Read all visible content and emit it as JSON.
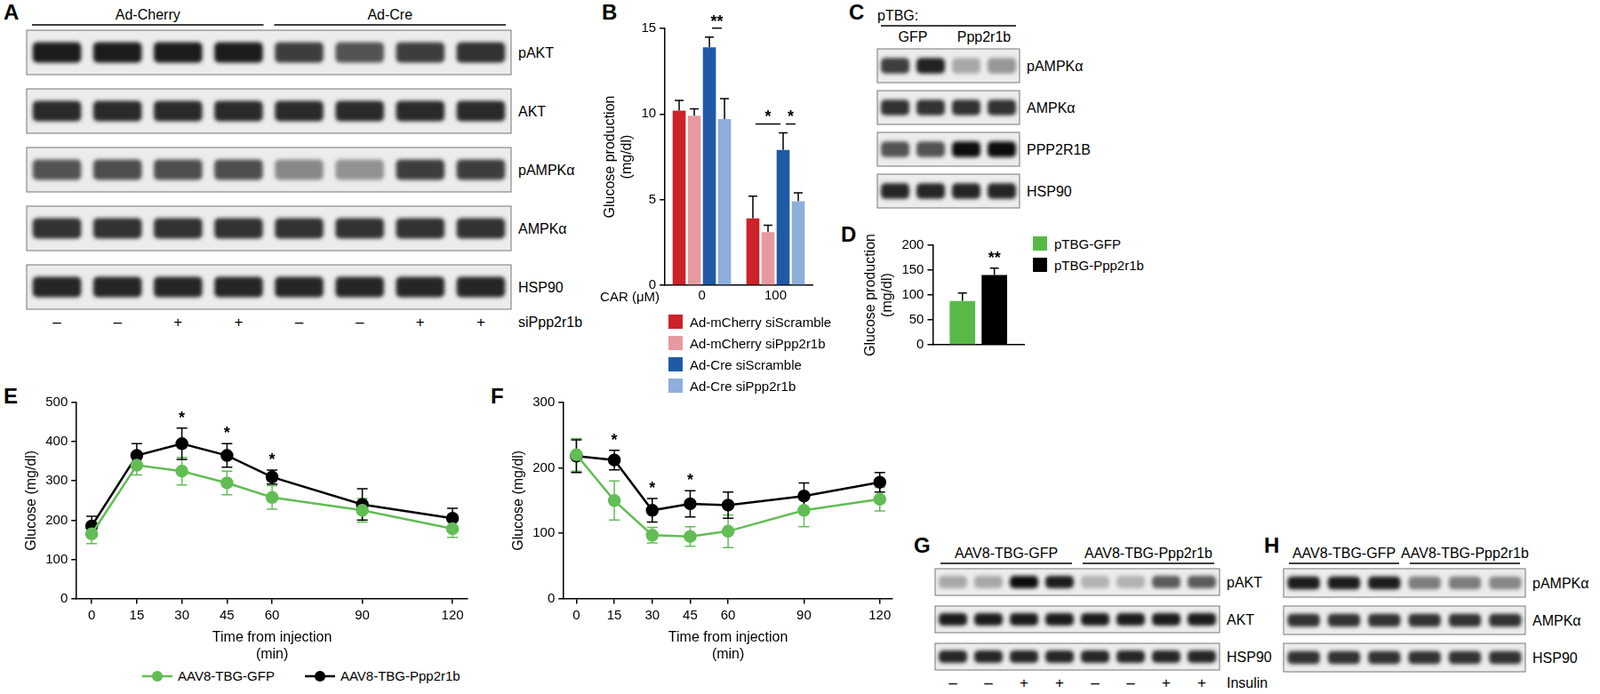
{
  "chart_data": [
    {
      "type": "blot",
      "panel": "A",
      "lane_groups": [
        "Ad-Cherry",
        "Ad-Cherry",
        "Ad-Cherry",
        "Ad-Cherry",
        "Ad-Cre",
        "Ad-Cre",
        "Ad-Cre",
        "Ad-Cre"
      ],
      "rows": [
        {
          "label": "pAKT",
          "intensity": [
            0.95,
            0.95,
            0.95,
            0.95,
            0.8,
            0.7,
            0.8,
            0.85
          ]
        },
        {
          "label": "AKT",
          "intensity": [
            0.88,
            0.88,
            0.88,
            0.88,
            0.88,
            0.88,
            0.88,
            0.88
          ]
        },
        {
          "label": "pAMPKα",
          "intensity": [
            0.7,
            0.72,
            0.72,
            0.72,
            0.45,
            0.4,
            0.8,
            0.8
          ]
        },
        {
          "label": "AMPKα",
          "intensity": [
            0.85,
            0.85,
            0.85,
            0.85,
            0.85,
            0.85,
            0.85,
            0.85
          ]
        },
        {
          "label": "HSP90",
          "intensity": [
            0.9,
            0.9,
            0.9,
            0.9,
            0.9,
            0.9,
            0.9,
            0.9
          ]
        }
      ],
      "lane_labels": [
        "–",
        "–",
        "+",
        "+",
        "–",
        "–",
        "+",
        "+"
      ],
      "lane_label_title": "siPpp2r1b"
    },
    {
      "type": "bar",
      "panel": "B",
      "categories": [
        "0",
        "100"
      ],
      "x_label": "AICAR (μM)",
      "y_label": "Glucose production (mg/dl)",
      "ylim": [
        0,
        15
      ],
      "yticks": [
        0,
        5,
        10,
        15
      ],
      "grid": false,
      "legend": "bottom",
      "series": [
        {
          "name": "Ad-mCherry siScramble",
          "color": "#cc2229",
          "values": [
            10.2,
            3.9
          ],
          "errors": [
            0.6,
            1.3
          ]
        },
        {
          "name": "Ad-mCherry siPpp2r1b",
          "color": "#e69a9f",
          "values": [
            9.9,
            3.1
          ],
          "errors": [
            0.4,
            0.4
          ]
        },
        {
          "name": "Ad-Cre siScramble",
          "color": "#1f5aa6",
          "values": [
            13.9,
            7.9
          ],
          "errors": [
            0.6,
            1.0
          ]
        },
        {
          "name": "Ad-Cre siPpp2r1b",
          "color": "#8eaedb",
          "values": [
            9.7,
            4.9
          ],
          "errors": [
            1.2,
            0.5
          ]
        }
      ],
      "significance": [
        {
          "text": "**",
          "category": 0,
          "from": 2,
          "to": 3
        },
        {
          "text": "*",
          "category": 1,
          "from": 0,
          "to": 2
        },
        {
          "text": "*",
          "category": 1,
          "from": 2,
          "to": 3
        }
      ]
    },
    {
      "type": "blot",
      "panel": "C",
      "header": "pTBG:",
      "lane_groups": [
        "GFP",
        "GFP",
        "Ppp2r1b",
        "Ppp2r1b"
      ],
      "rows": [
        {
          "label": "pAMPKα",
          "intensity": [
            0.8,
            0.92,
            0.3,
            0.38
          ]
        },
        {
          "label": "AMPKα",
          "intensity": [
            0.85,
            0.85,
            0.85,
            0.85
          ]
        },
        {
          "label": "PPP2R1B",
          "intensity": [
            0.7,
            0.7,
            1.0,
            1.0
          ]
        },
        {
          "label": "HSP90",
          "intensity": [
            0.9,
            0.9,
            0.9,
            0.9
          ]
        }
      ]
    },
    {
      "type": "bar",
      "panel": "D",
      "categories": [
        null
      ],
      "y_label": "Glucose production (mg/dl)",
      "ylim": [
        0,
        200
      ],
      "yticks": [
        0,
        50,
        100,
        150,
        200
      ],
      "grid": false,
      "legend": "top right",
      "series": [
        {
          "name": "pTBG-GFP",
          "color": "#58b947",
          "values": [
            88
          ],
          "errors": [
            16
          ]
        },
        {
          "name": "pTBG-Ppp2r1b",
          "color": "#000000",
          "values": [
            140
          ],
          "errors": [
            14
          ]
        }
      ],
      "significance": [
        {
          "text": "**",
          "category": 0,
          "series": 1
        }
      ]
    },
    {
      "type": "line",
      "panel": "E",
      "x": [
        0,
        15,
        30,
        45,
        60,
        90,
        120
      ],
      "xlim": [
        -5,
        125
      ],
      "xticks": [
        0,
        15,
        30,
        45,
        60,
        90,
        120
      ],
      "ylim": [
        0,
        500
      ],
      "yticks": [
        0,
        100,
        200,
        300,
        400,
        500
      ],
      "x_label": "Time from injection (min)",
      "y_label": "Glucose (mg/dl)",
      "grid": false,
      "legend": "bottom",
      "series": [
        {
          "name": "AAV8-TBG-GFP",
          "color": "#62bd55",
          "marker": "circle",
          "values": [
            165,
            340,
            325,
            295,
            258,
            225,
            178
          ],
          "errors": [
            25,
            25,
            35,
            30,
            30,
            30,
            22
          ]
        },
        {
          "name": "AAV8-TBG-Ppp2r1b",
          "color": "#000000",
          "marker": "circle",
          "values": [
            185,
            365,
            395,
            365,
            310,
            240,
            205
          ],
          "errors": [
            25,
            30,
            40,
            30,
            18,
            40,
            25
          ]
        }
      ],
      "significance": [
        {
          "text": "*",
          "x": 30
        },
        {
          "text": "*",
          "x": 45
        },
        {
          "text": "*",
          "x": 60
        }
      ]
    },
    {
      "type": "line",
      "panel": "F",
      "x": [
        0,
        15,
        30,
        45,
        60,
        90,
        120
      ],
      "xlim": [
        -5,
        125
      ],
      "xticks": [
        0,
        15,
        30,
        45,
        60,
        90,
        120
      ],
      "ylim": [
        0,
        300
      ],
      "yticks": [
        0,
        100,
        200,
        300
      ],
      "x_label": "Time from injection (min)",
      "y_label": "Glucose (mg/dl)",
      "grid": false,
      "legend": "bottom",
      "series": [
        {
          "name": "AAV8-TBG-GFP",
          "color": "#62bd55",
          "marker": "circle",
          "values": [
            220,
            150,
            97,
            95,
            103,
            135,
            152
          ],
          "errors": [
            25,
            30,
            12,
            15,
            25,
            25,
            18
          ]
        },
        {
          "name": "AAV8-TBG-Ppp2r1b",
          "color": "#000000",
          "marker": "circle",
          "values": [
            218,
            212,
            135,
            145,
            143,
            157,
            178
          ],
          "errors": [
            25,
            15,
            18,
            20,
            20,
            20,
            15
          ]
        }
      ],
      "significance": [
        {
          "text": "*",
          "x": 15
        },
        {
          "text": "*",
          "x": 30
        },
        {
          "text": "*",
          "x": 45
        }
      ]
    },
    {
      "type": "blot",
      "panel": "G",
      "lane_groups": [
        "AAV8-TBG-GFP",
        "AAV8-TBG-GFP",
        "AAV8-TBG-GFP",
        "AAV8-TBG-GFP",
        "AAV8-TBG-Ppp2r1b",
        "AAV8-TBG-Ppp2r1b",
        "AAV8-TBG-Ppp2r1b",
        "AAV8-TBG-Ppp2r1b"
      ],
      "rows": [
        {
          "label": "pAKT",
          "intensity": [
            0.3,
            0.3,
            1.0,
            0.95,
            0.25,
            0.25,
            0.65,
            0.65
          ]
        },
        {
          "label": "AKT",
          "intensity": [
            0.95,
            0.95,
            0.95,
            0.95,
            0.95,
            0.95,
            0.95,
            0.95
          ]
        },
        {
          "label": "HSP90",
          "intensity": [
            0.9,
            0.9,
            0.9,
            0.9,
            0.9,
            0.9,
            0.9,
            0.9
          ]
        }
      ],
      "lane_labels": [
        "–",
        "–",
        "+",
        "+",
        "–",
        "–",
        "+",
        "+"
      ],
      "lane_label_title": "Insulin"
    },
    {
      "type": "blot",
      "panel": "H",
      "lane_groups": [
        "AAV8-TBG-GFP",
        "AAV8-TBG-GFP",
        "AAV8-TBG-GFP",
        "AAV8-TBG-Ppp2r1b",
        "AAV8-TBG-Ppp2r1b",
        "AAV8-TBG-Ppp2r1b"
      ],
      "rows": [
        {
          "label": "pAMPKα",
          "intensity": [
            0.95,
            0.95,
            0.95,
            0.5,
            0.5,
            0.45
          ]
        },
        {
          "label": "AMPKα",
          "intensity": [
            0.85,
            0.85,
            0.85,
            0.85,
            0.85,
            0.85
          ]
        },
        {
          "label": "HSP90",
          "intensity": [
            0.85,
            0.85,
            0.85,
            0.85,
            0.85,
            0.85
          ]
        }
      ]
    }
  ]
}
